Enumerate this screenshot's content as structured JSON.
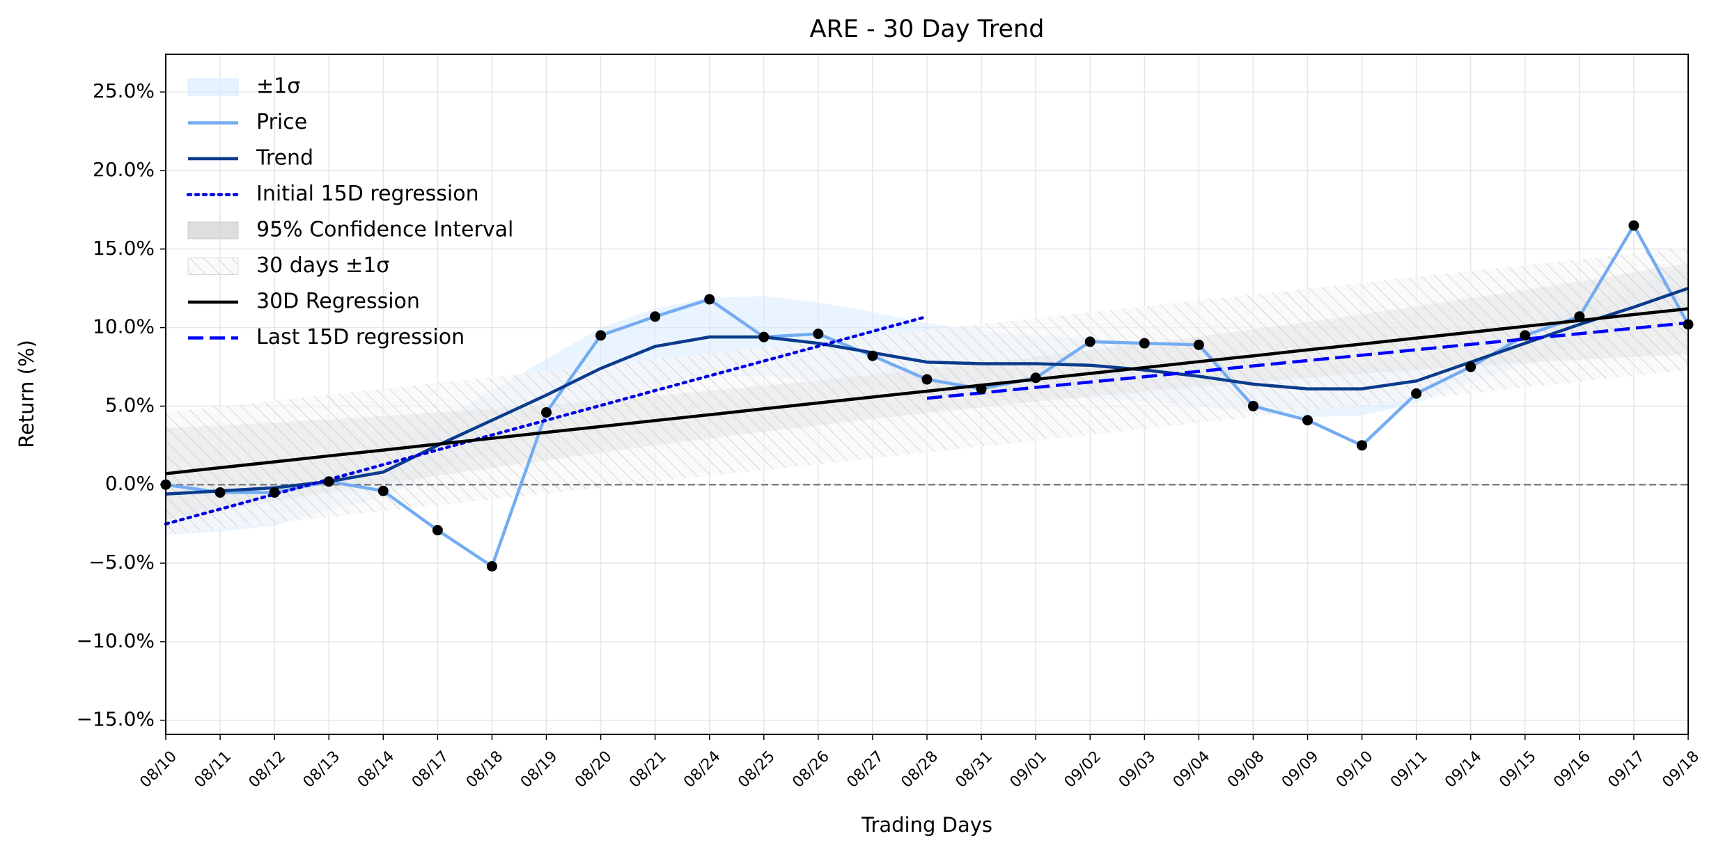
{
  "chart_data": {
    "type": "line",
    "title": "ARE - 30 Day Trend",
    "xlabel": "Trading Days",
    "ylabel": "Return (%)",
    "categories": [
      "08/10",
      "08/11",
      "08/12",
      "08/13",
      "08/14",
      "08/17",
      "08/18",
      "08/19",
      "08/20",
      "08/21",
      "08/24",
      "08/25",
      "08/26",
      "08/27",
      "08/28",
      "08/31",
      "09/01",
      "09/02",
      "09/03",
      "09/04",
      "09/08",
      "09/09",
      "09/10",
      "09/11",
      "09/14",
      "09/15",
      "09/16",
      "09/17",
      "09/18"
    ],
    "ylim": [
      -15.9,
      27.4
    ],
    "yticks": [
      {
        "value": -15,
        "label": "−15.0%"
      },
      {
        "value": -10,
        "label": "−10.0%"
      },
      {
        "value": -5,
        "label": "−5.0%"
      },
      {
        "value": 0,
        "label": "0.0%"
      },
      {
        "value": 5,
        "label": "5.0%"
      },
      {
        "value": 10,
        "label": "10.0%"
      },
      {
        "value": 15,
        "label": "15.0%"
      },
      {
        "value": 20,
        "label": "20.0%"
      },
      {
        "value": 25,
        "label": "25.0%"
      }
    ],
    "grid": true,
    "legend": "upper left",
    "reference_line": {
      "y": 0,
      "color": "#808080",
      "style": "dashed"
    },
    "series": [
      {
        "name": "±1σ",
        "kind": "band",
        "color": "#d6eaff",
        "hatch": false,
        "upper": [
          0.5,
          0.8,
          1.1,
          1.6,
          2.3,
          4.0,
          6.0,
          8.0,
          10.0,
          11.2,
          11.9,
          12.0,
          11.6,
          11.0,
          10.3,
          9.8,
          9.5,
          9.3,
          9.0,
          8.7,
          8.2,
          7.8,
          7.7,
          8.0,
          9.0,
          10.2,
          11.4,
          12.6,
          13.8
        ],
        "lower": [
          -3.2,
          -3.0,
          -2.6,
          -1.6,
          -0.8,
          0.8,
          2.2,
          3.6,
          5.0,
          6.3,
          6.9,
          6.9,
          6.6,
          6.2,
          5.7,
          5.6,
          5.6,
          5.5,
          5.3,
          5.0,
          4.6,
          4.3,
          4.4,
          5.2,
          6.5,
          7.7,
          8.9,
          10.0,
          11.2
        ]
      },
      {
        "name": "Price",
        "kind": "line",
        "color": "#74acf2",
        "linestyle": "solid",
        "marker_color": "#000000",
        "values": [
          0.0,
          -0.5,
          -0.5,
          0.2,
          -0.4,
          -2.9,
          -5.2,
          4.6,
          9.5,
          10.7,
          11.8,
          9.4,
          9.6,
          8.2,
          6.7,
          6.1,
          6.8,
          9.1,
          9.0,
          8.9,
          5.0,
          4.1,
          2.5,
          5.8,
          7.5,
          9.5,
          10.7,
          16.5,
          10.2
        ]
      },
      {
        "name": "Trend",
        "kind": "line",
        "color": "#0a3b8c",
        "linestyle": "solid",
        "values": [
          -0.6,
          -0.4,
          -0.2,
          0.2,
          0.8,
          2.5,
          4.1,
          5.7,
          7.4,
          8.8,
          9.4,
          9.4,
          9.0,
          8.4,
          7.8,
          7.7,
          7.7,
          7.6,
          7.3,
          6.9,
          6.4,
          6.1,
          6.1,
          6.6,
          7.8,
          9.0,
          10.2,
          11.3,
          12.5
        ]
      },
      {
        "name": "Initial 15D regression",
        "kind": "line",
        "color": "#0000e0",
        "linestyle": "dotted",
        "values": [
          -2.5,
          -1.56,
          -0.61,
          0.33,
          1.27,
          2.21,
          3.16,
          4.1,
          5.04,
          5.99,
          6.93,
          7.87,
          8.81,
          9.76,
          10.7,
          null,
          null,
          null,
          null,
          null,
          null,
          null,
          null,
          null,
          null,
          null,
          null,
          null,
          null
        ]
      },
      {
        "name": "95% Confidence Interval",
        "kind": "band",
        "color": "#c8c8c8",
        "hatch": false,
        "upper": [
          3.6,
          3.77,
          3.95,
          4.16,
          4.37,
          4.6,
          4.84,
          5.11,
          5.38,
          5.67,
          5.97,
          6.3,
          6.63,
          6.99,
          7.35,
          7.74,
          8.13,
          8.55,
          8.97,
          9.42,
          9.88,
          10.36,
          10.84,
          11.35,
          11.87,
          12.41,
          12.95,
          13.52,
          14.1
        ],
        "lower": [
          -2.2,
          -1.61,
          -1.05,
          -0.5,
          0.03,
          0.56,
          1.06,
          1.55,
          2.02,
          2.49,
          2.93,
          3.36,
          3.77,
          4.17,
          4.55,
          4.92,
          5.27,
          5.61,
          5.93,
          6.24,
          6.52,
          6.8,
          7.06,
          7.31,
          7.53,
          7.75,
          7.95,
          8.14,
          8.3
        ]
      },
      {
        "name": "30 days ±1σ",
        "kind": "band",
        "color": "#d0d0d0",
        "hatch": true,
        "upper": [
          4.6,
          4.98,
          5.35,
          5.73,
          6.1,
          6.48,
          6.85,
          7.23,
          7.6,
          7.98,
          8.35,
          8.73,
          9.1,
          9.48,
          9.85,
          10.23,
          10.6,
          10.98,
          11.35,
          11.73,
          12.1,
          12.48,
          12.85,
          13.23,
          13.6,
          13.98,
          14.35,
          14.73,
          15.1
        ],
        "lower": [
          -3.2,
          -2.82,
          -2.45,
          -2.07,
          -1.7,
          -1.32,
          -0.95,
          -0.57,
          -0.2,
          0.18,
          0.55,
          0.93,
          1.3,
          1.68,
          2.05,
          2.43,
          2.8,
          3.18,
          3.55,
          3.93,
          4.3,
          4.68,
          5.05,
          5.43,
          5.8,
          6.18,
          6.55,
          6.93,
          7.3
        ]
      },
      {
        "name": "30D Regression",
        "kind": "line",
        "color": "#000000",
        "linestyle": "solid",
        "values": [
          0.7,
          1.08,
          1.45,
          1.83,
          2.2,
          2.58,
          2.95,
          3.33,
          3.7,
          4.08,
          4.45,
          4.83,
          5.2,
          5.58,
          5.95,
          6.33,
          6.7,
          7.08,
          7.45,
          7.83,
          8.2,
          8.58,
          8.95,
          9.33,
          9.7,
          10.08,
          10.45,
          10.83,
          11.2
        ]
      },
      {
        "name": "Last 15D regression",
        "kind": "line",
        "color": "#0000ff",
        "linestyle": "dashed",
        "values": [
          null,
          null,
          null,
          null,
          null,
          null,
          null,
          null,
          null,
          null,
          null,
          null,
          null,
          null,
          5.5,
          5.84,
          6.19,
          6.53,
          6.87,
          7.21,
          7.56,
          7.9,
          8.24,
          8.59,
          8.93,
          9.27,
          9.61,
          9.96,
          10.3
        ]
      }
    ]
  }
}
